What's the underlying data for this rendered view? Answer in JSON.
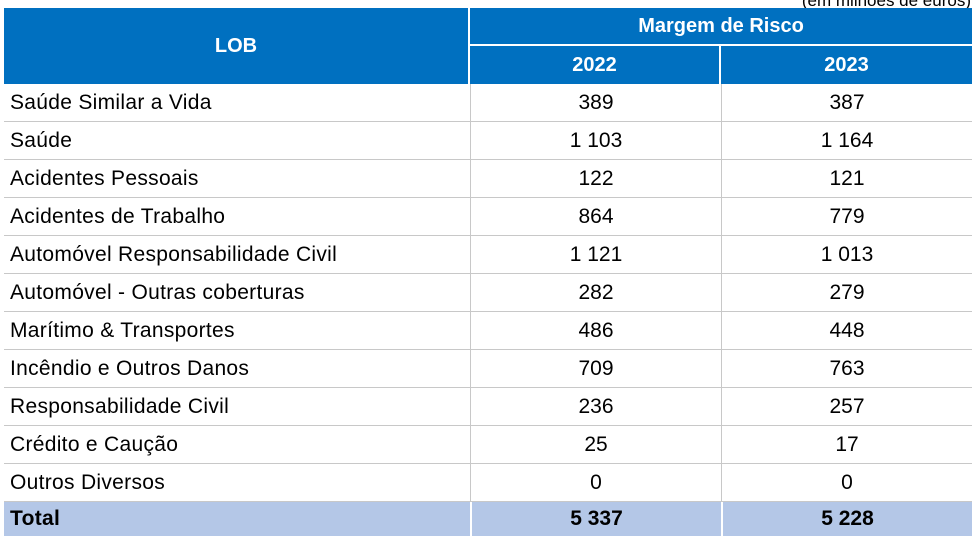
{
  "units_note": "(em milhões de euros)",
  "header": {
    "lob": "LOB",
    "group": "Margem de Risco",
    "years": [
      "2022",
      "2023"
    ]
  },
  "rows": [
    {
      "lob": "Saúde Similar a Vida",
      "v2022": "389",
      "v2023": "387"
    },
    {
      "lob": "Saúde",
      "v2022": "1 103",
      "v2023": "1 164"
    },
    {
      "lob": "Acidentes Pessoais",
      "v2022": "122",
      "v2023": "121"
    },
    {
      "lob": "Acidentes de Trabalho",
      "v2022": "864",
      "v2023": "779"
    },
    {
      "lob": "Automóvel Responsabilidade Civil",
      "v2022": "1 121",
      "v2023": "1 013"
    },
    {
      "lob": "Automóvel - Outras coberturas",
      "v2022": "282",
      "v2023": "279"
    },
    {
      "lob": "Marítimo & Transportes",
      "v2022": "486",
      "v2023": "448"
    },
    {
      "lob": "Incêndio e Outros Danos",
      "v2022": "709",
      "v2023": "763"
    },
    {
      "lob": "Responsabilidade Civil",
      "v2022": "236",
      "v2023": "257"
    },
    {
      "lob": "Crédito e Caução",
      "v2022": "25",
      "v2023": "17"
    },
    {
      "lob": "Outros Diversos",
      "v2022": "0",
      "v2023": "0"
    }
  ],
  "total": {
    "label": "Total",
    "v2022": "5 337",
    "v2023": "5 228"
  },
  "colors": {
    "header_bg": "#0070c0",
    "total_bg": "#b4c7e7"
  }
}
